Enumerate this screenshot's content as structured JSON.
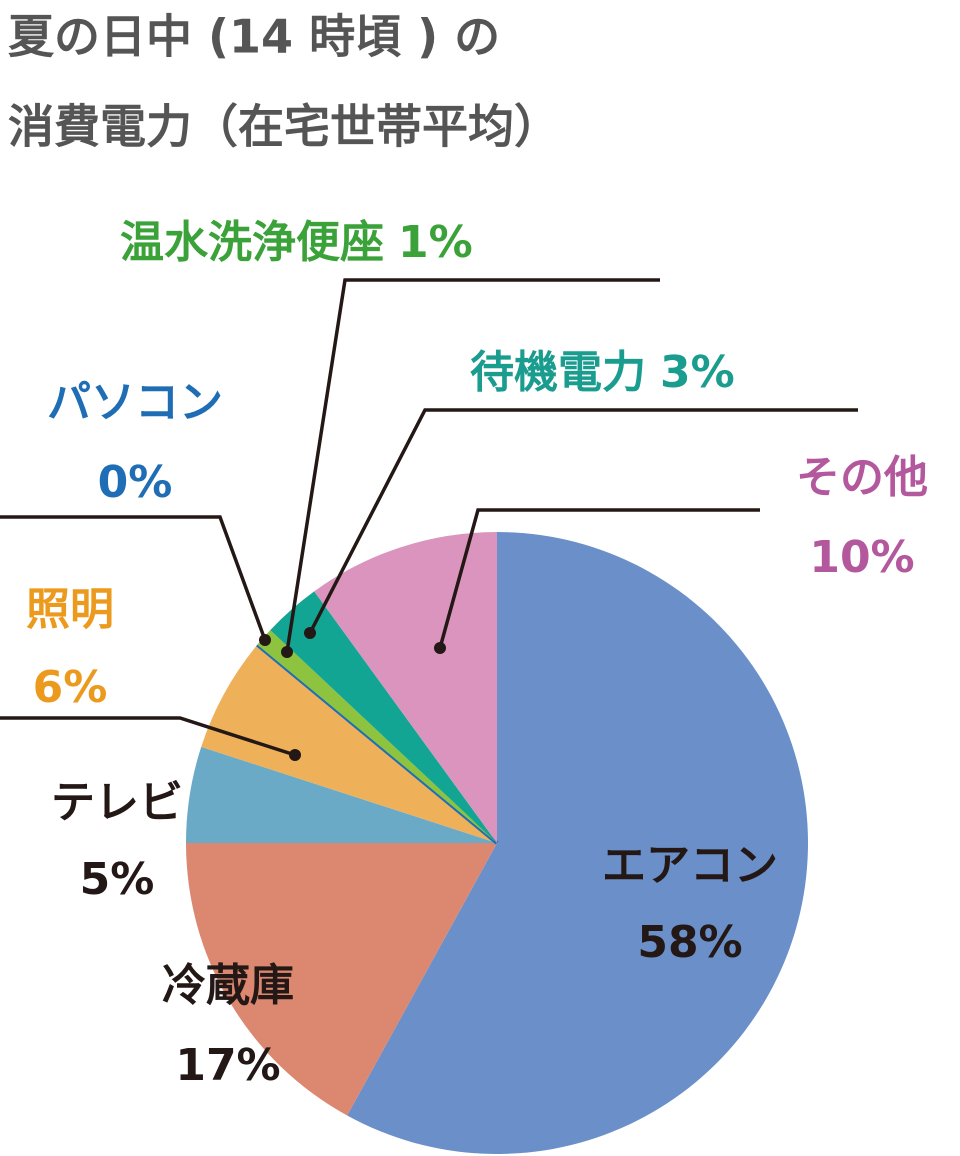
{
  "chart_data": {
    "type": "pie",
    "title": [
      "夏の日中 (14 時頃 ) の",
      "消費電力（在宅世帯平均）"
    ],
    "categories": [
      "エアコン",
      "冷蔵庫",
      "テレビ",
      "照明",
      "パソコン",
      "温水洗浄便座",
      "待機電力",
      "その他"
    ],
    "values": [
      58,
      17,
      5,
      6,
      0,
      1,
      3,
      10
    ],
    "value_labels": [
      "58%",
      "17%",
      "5%",
      "6%",
      "0%",
      "1%",
      "3%",
      "10%"
    ],
    "colors": [
      "#6b8fc8",
      "#dc8870",
      "#6aaac6",
      "#efb05a",
      "#1b6fba",
      "#8dc33e",
      "#13a594",
      "#da94bd"
    ],
    "label_colors": [
      "#231815",
      "#231815",
      "#231815",
      "#ec9a1d",
      "#1f6db5",
      "#3aa239",
      "#1a9c8f",
      "#b4589e"
    ]
  }
}
